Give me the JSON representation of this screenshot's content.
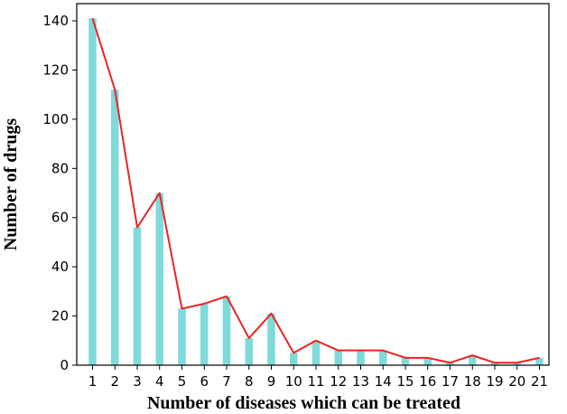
{
  "chart_data": {
    "type": "bar",
    "categories": [
      "1",
      "2",
      "3",
      "4",
      "5",
      "6",
      "7",
      "8",
      "9",
      "10",
      "11",
      "12",
      "13",
      "14",
      "15",
      "16",
      "17",
      "18",
      "19",
      "20",
      "21"
    ],
    "values": [
      141,
      112,
      56,
      70,
      23,
      25,
      28,
      11,
      21,
      5,
      10,
      6,
      6,
      6,
      3,
      3,
      1,
      4,
      1,
      1,
      3
    ],
    "overlay_line": {
      "type": "line",
      "values": [
        141,
        112,
        56,
        70,
        23,
        25,
        28,
        11,
        21,
        5,
        10,
        6,
        6,
        6,
        3,
        3,
        1,
        4,
        1,
        1,
        3
      ]
    },
    "title": "",
    "xlabel": "Number of diseases which can be treated",
    "ylabel": "Number of drugs",
    "ylim": [
      0,
      147
    ],
    "yticks": [
      0,
      20,
      40,
      60,
      80,
      100,
      120,
      140
    ],
    "grid": false,
    "colors": {
      "bar": "#7fdada",
      "line": "#ee2222",
      "axis": "#000000"
    }
  }
}
